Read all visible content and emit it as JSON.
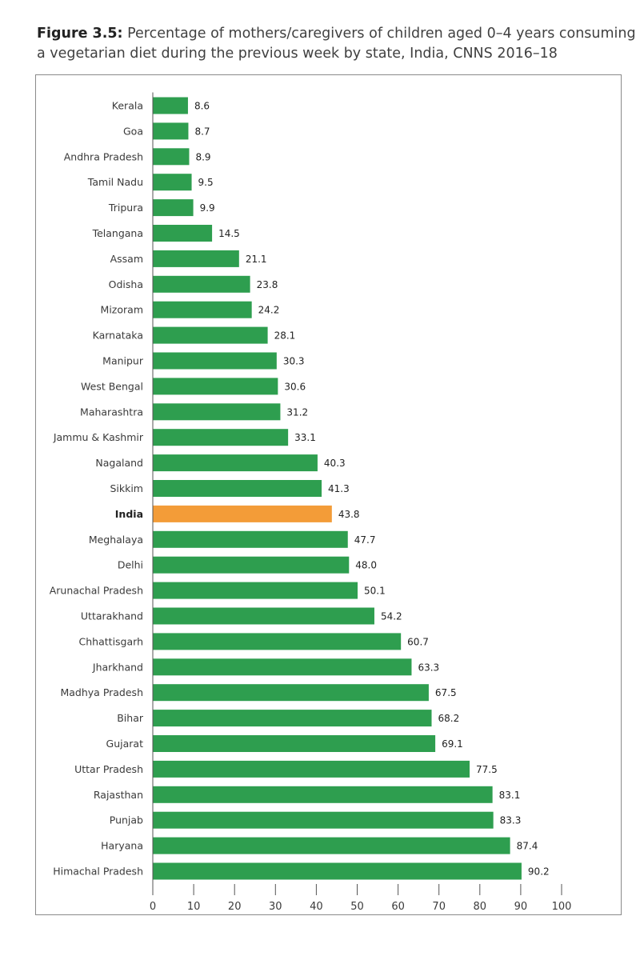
{
  "figure": {
    "label": "Figure 3.5:",
    "title_line1_rest": " Percentage of mothers/caregivers of children aged 0–4 years consuming",
    "title_line2": "a vegetarian diet during the previous week by state, India,  CNNS 2016–18"
  },
  "colors": {
    "bar": "#2e9e4f",
    "highlight": "#f39c38",
    "axis": "#555555"
  },
  "chart_data": {
    "type": "bar",
    "orientation": "horizontal",
    "title": "Percentage of mothers/caregivers of children aged 0–4 years consuming a vegetarian diet during the previous week by state, India,  CNNS 2016–18",
    "categories": [
      "Kerala",
      "Goa",
      "Andhra Pradesh",
      "Tamil Nadu",
      "Tripura",
      "Telangana",
      "Assam",
      "Odisha",
      "Mizoram",
      "Karnataka",
      "Manipur",
      "West Bengal",
      "Maharashtra",
      "Jammu & Kashmir",
      "Nagaland",
      "Sikkim",
      "India",
      "Meghalaya",
      "Delhi",
      "Arunachal Pradesh",
      "Uttarakhand",
      "Chhattisgarh",
      "Jharkhand",
      "Madhya Pradesh",
      "Bihar",
      "Gujarat",
      "Uttar Pradesh",
      "Rajasthan",
      "Punjab",
      "Haryana",
      "Himachal Pradesh"
    ],
    "values": [
      8.6,
      8.7,
      8.9,
      9.5,
      9.9,
      14.5,
      21.1,
      23.8,
      24.2,
      28.1,
      30.3,
      30.6,
      31.2,
      33.1,
      40.3,
      41.3,
      43.8,
      47.7,
      48.0,
      50.1,
      54.2,
      60.7,
      63.3,
      67.5,
      68.2,
      69.1,
      77.5,
      83.1,
      83.3,
      87.4,
      90.2
    ],
    "value_labels": [
      "8.6",
      "8.7",
      "8.9",
      "9.5",
      "9.9",
      "14.5",
      "21.1",
      "23.8",
      "24.2",
      "28.1",
      "30.3",
      "30.6",
      "31.2",
      "33.1",
      "40.3",
      "41.3",
      "43.8",
      "47.7",
      "48.0",
      "50.1",
      "54.2",
      "60.7",
      "63.3",
      "67.5",
      "68.2",
      "69.1",
      "77.5",
      "83.1",
      "83.3",
      "87.4",
      "90.2"
    ],
    "highlight_category": "India",
    "xlim": [
      0,
      100
    ],
    "xticks": [
      0,
      10,
      20,
      30,
      40,
      50,
      60,
      70,
      80,
      90,
      100
    ],
    "xlabel": "",
    "ylabel": "",
    "grid": false,
    "legend": "none"
  }
}
